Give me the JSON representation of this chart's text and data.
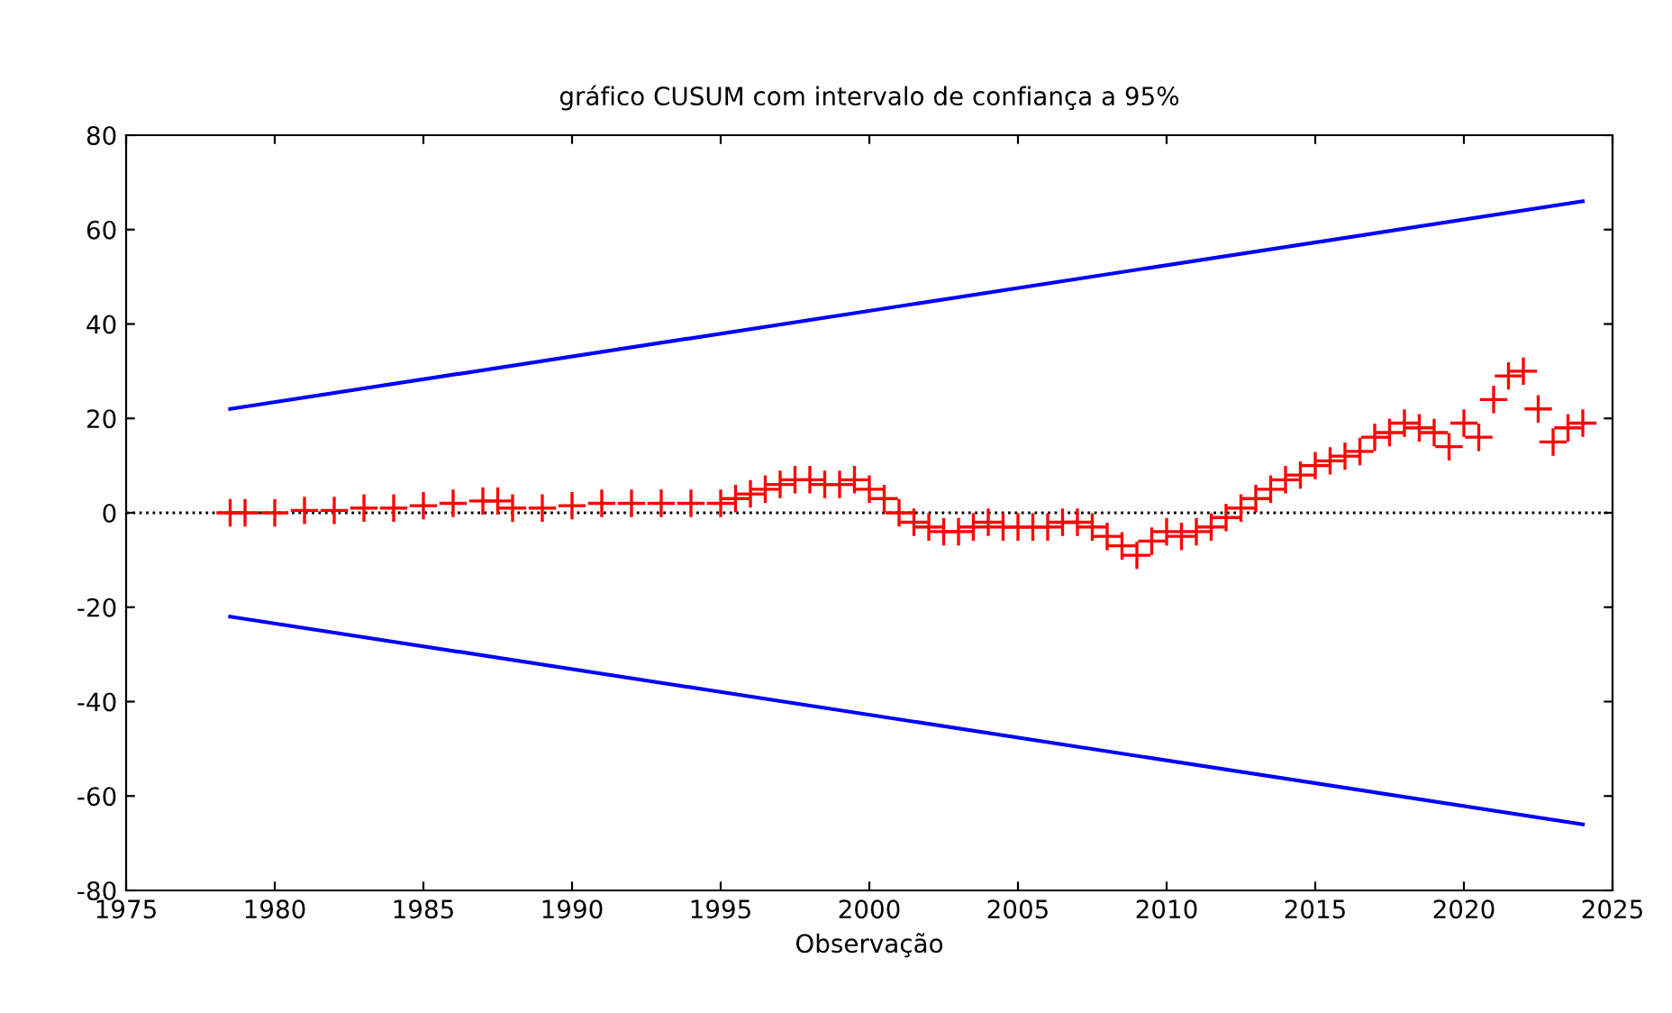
{
  "chart_data": {
    "type": "scatter",
    "title": "gráfico CUSUM com intervalo de confiança a 95%",
    "xlabel": "Observação",
    "xlim": [
      1975,
      2025
    ],
    "xticks": [
      1975,
      1980,
      1985,
      1990,
      1995,
      2000,
      2005,
      2010,
      2015,
      2020,
      2025
    ],
    "ylim": [
      -80,
      80
    ],
    "yticks": [
      -80,
      -60,
      -40,
      -20,
      0,
      20,
      40,
      60,
      80
    ],
    "grid": false,
    "series": [
      {
        "color": "#ff0000",
        "marker": "cross",
        "x": [
          1978.5,
          1979,
          1980,
          1981,
          1982,
          1983,
          1984,
          1985,
          1986,
          1987,
          1987.5,
          1988,
          1989,
          1990,
          1991,
          1992,
          1993,
          1994,
          1995,
          1995.5,
          1996,
          1996.5,
          1997,
          1997.5,
          1998,
          1998.5,
          1999,
          1999.5,
          2000,
          2000.5,
          2001,
          2001.5,
          2002,
          2002.5,
          2003,
          2003.5,
          2004,
          2004.5,
          2005,
          2005.5,
          2006,
          2006.5,
          2007,
          2007.5,
          2008,
          2008.5,
          2009,
          2009.5,
          2010,
          2010.5,
          2011,
          2011.5,
          2012,
          2012.5,
          2013,
          2013.5,
          2014,
          2014.5,
          2015,
          2015.5,
          2016,
          2016.5,
          2017,
          2017.5,
          2018,
          2018.5,
          2019,
          2019.5,
          2020,
          2020.5,
          2021,
          2021.5,
          2022,
          2022.5,
          2023,
          2023.5,
          2024
        ],
        "values": [
          0,
          0,
          0,
          0.5,
          0.5,
          1,
          1,
          1.5,
          2,
          2.5,
          2.5,
          1,
          1,
          1.5,
          2,
          2,
          2,
          2,
          2,
          3,
          4,
          5,
          6,
          7,
          7,
          6,
          6,
          7,
          5,
          3,
          0,
          -2,
          -3,
          -4,
          -4,
          -3,
          -2,
          -3,
          -3,
          -3,
          -3,
          -2,
          -2,
          -3,
          -5,
          -7,
          -9,
          -6,
          -4,
          -5,
          -4,
          -3,
          -1,
          1,
          3,
          5,
          7,
          8,
          10,
          11,
          12,
          13,
          16,
          17,
          19,
          18,
          17,
          14,
          19,
          16,
          24,
          29,
          30,
          22,
          15,
          18,
          19
        ]
      },
      {
        "type": "line",
        "color": "#0000ff",
        "x": [
          1978.5,
          2024
        ],
        "values": [
          22,
          66
        ]
      },
      {
        "type": "line",
        "color": "#0000ff",
        "x": [
          1978.5,
          2024
        ],
        "values": [
          -22,
          -66
        ]
      }
    ],
    "ref_lines": [
      {
        "axis": "y",
        "value": 0,
        "color": "#000000",
        "line_style": "dotted"
      }
    ]
  }
}
